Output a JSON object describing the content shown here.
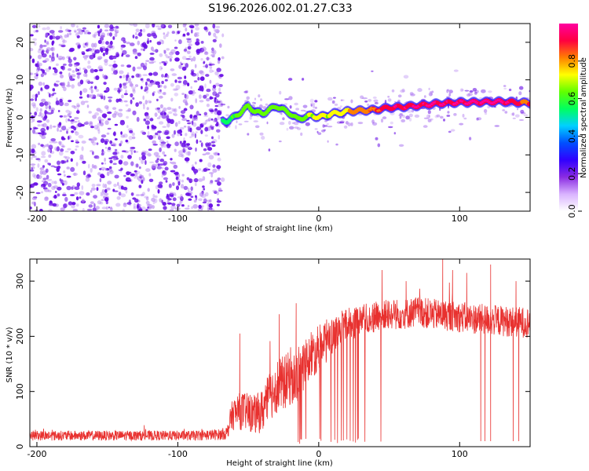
{
  "title": "S196.2026.002.01.27.C33",
  "colors": {
    "snr_line": "#e8312f",
    "sparse_cells": "#b07cf0",
    "dense_cells": "#6a10e6",
    "axis": "#000000"
  },
  "chart_data": [
    {
      "type": "heatmap",
      "title": "S196.2026.002.01.27.C33",
      "xlabel": "Height of straight line (km)",
      "ylabel": "Frequency (Hz)",
      "xlim": [
        -205,
        150
      ],
      "ylim": [
        -25,
        25
      ],
      "xticks": [
        -200,
        -100,
        0,
        100
      ],
      "yticks": [
        -20,
        -10,
        0,
        10,
        20
      ],
      "colorbar": {
        "label": "Normalized spectral amplitude",
        "range": [
          0,
          1
        ],
        "ticks": [
          0.0,
          0.2,
          0.4,
          0.6,
          0.8
        ],
        "tick_labels": [
          "0.0",
          "0.2",
          "0.4",
          "0.6",
          "0.8"
        ],
        "colormap": [
          "#ffffff",
          "#d9b3ff",
          "#8a2be2",
          "#3000ff",
          "#0050ff",
          "#00d0ff",
          "#00ff60",
          "#60ff00",
          "#ffff00",
          "#ff8000",
          "#ff0040",
          "#ff00a0"
        ]
      },
      "noise_region_x": [
        -205,
        -68
      ],
      "signal_region_x": [
        -68,
        150
      ],
      "ridge": {
        "x": [
          -65,
          -60,
          -55,
          -50,
          -45,
          -40,
          -35,
          -30,
          -25,
          -20,
          -15,
          -10,
          -5,
          0,
          5,
          10,
          15,
          20,
          30,
          40,
          50,
          60,
          70,
          80,
          90,
          100,
          110,
          120,
          130,
          140,
          150
        ],
        "frequency_hz": [
          -1.0,
          0.0,
          1.5,
          3.0,
          1.5,
          1.0,
          2.0,
          3.0,
          2.0,
          1.0,
          -0.5,
          0.0,
          0.5,
          0.0,
          0.5,
          1.0,
          1.2,
          1.6,
          1.8,
          2.0,
          2.6,
          2.8,
          3.1,
          3.5,
          3.8,
          4.0,
          4.0,
          4.1,
          4.2,
          4.0,
          3.8
        ],
        "amplitude": [
          0.3,
          0.35,
          0.4,
          0.45,
          0.4,
          0.45,
          0.5,
          0.45,
          0.45,
          0.45,
          0.45,
          0.5,
          0.55,
          0.6,
          0.55,
          0.6,
          0.65,
          0.7,
          0.8,
          0.85,
          0.95,
          0.9,
          0.95,
          1.0,
          0.95,
          0.95,
          1.0,
          1.0,
          1.0,
          0.9,
          0.85
        ]
      }
    },
    {
      "type": "line",
      "xlabel": "Height of straight line (km)",
      "ylabel": "SNR (10 * v/v)",
      "xlim": [
        -205,
        150
      ],
      "ylim": [
        0,
        340
      ],
      "xticks": [
        -200,
        -100,
        0,
        100
      ],
      "yticks": [
        0,
        100,
        200,
        300
      ],
      "series": [
        {
          "name": "SNR",
          "x": [
            -205,
            -180,
            -150,
            -120,
            -90,
            -70,
            -65,
            -62,
            -60,
            -55,
            -50,
            -45,
            -40,
            -35,
            -30,
            -25,
            -20,
            -15,
            -10,
            -5,
            0,
            5,
            10,
            15,
            20,
            25,
            30,
            40,
            50,
            60,
            70,
            80,
            90,
            100,
            110,
            120,
            130,
            140,
            150
          ],
          "mean": [
            20,
            20,
            20,
            20,
            20,
            22,
            25,
            55,
            60,
            65,
            62,
            58,
            65,
            90,
            110,
            115,
            125,
            130,
            150,
            165,
            180,
            190,
            200,
            215,
            220,
            225,
            230,
            235,
            240,
            240,
            245,
            240,
            238,
            235,
            232,
            230,
            228,
            226,
            225
          ],
          "noise": [
            9,
            9,
            9,
            9,
            9,
            10,
            12,
            25,
            30,
            35,
            35,
            35,
            40,
            45,
            50,
            50,
            50,
            50,
            45,
            45,
            40,
            40,
            35,
            30,
            30,
            30,
            28,
            28,
            28,
            28,
            28,
            28,
            28,
            28,
            28,
            28,
            28,
            28,
            28
          ],
          "spike_peaks_x": [
            -56,
            -28,
            -16,
            45,
            62,
            88,
            95,
            105,
            122,
            140
          ],
          "spike_peaks_y": [
            205,
            240,
            260,
            320,
            300,
            340,
            320,
            315,
            330,
            300
          ],
          "dropout_zone_x": [
            -20,
            55
          ],
          "late_dropouts_x": [
            115,
            118,
            122,
            138,
            142
          ]
        }
      ]
    }
  ]
}
